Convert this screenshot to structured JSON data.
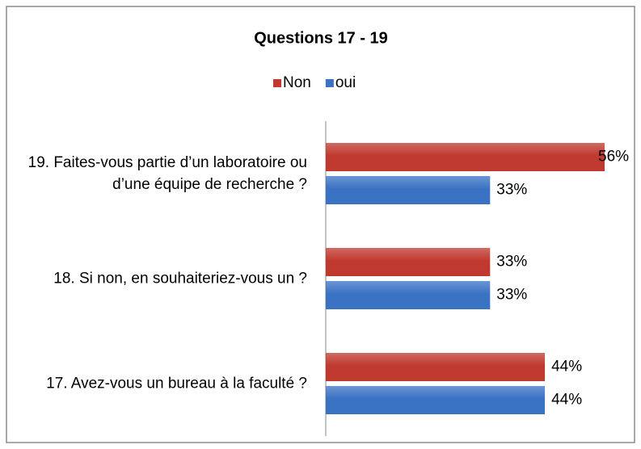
{
  "chart_data": {
    "type": "bar",
    "orientation": "horizontal",
    "title": "Questions 17 - 19",
    "categories": [
      "19.  Faites-vous partie d’un laboratoire ou d’une équipe de recherche ?",
      "18. Si non, en souhaiteriez-vous un ?",
      "17. Avez-vous un bureau à la faculté ?"
    ],
    "series": [
      {
        "name": "Non",
        "color": "#c0392f",
        "values": [
          56,
          33,
          44
        ],
        "value_labels": [
          "56%",
          "33%",
          "44%"
        ]
      },
      {
        "name": "oui",
        "color": "#3a72c4",
        "values": [
          33,
          33,
          44
        ],
        "value_labels": [
          "33%",
          "33%",
          "44%"
        ]
      }
    ],
    "legend": "top"
  }
}
